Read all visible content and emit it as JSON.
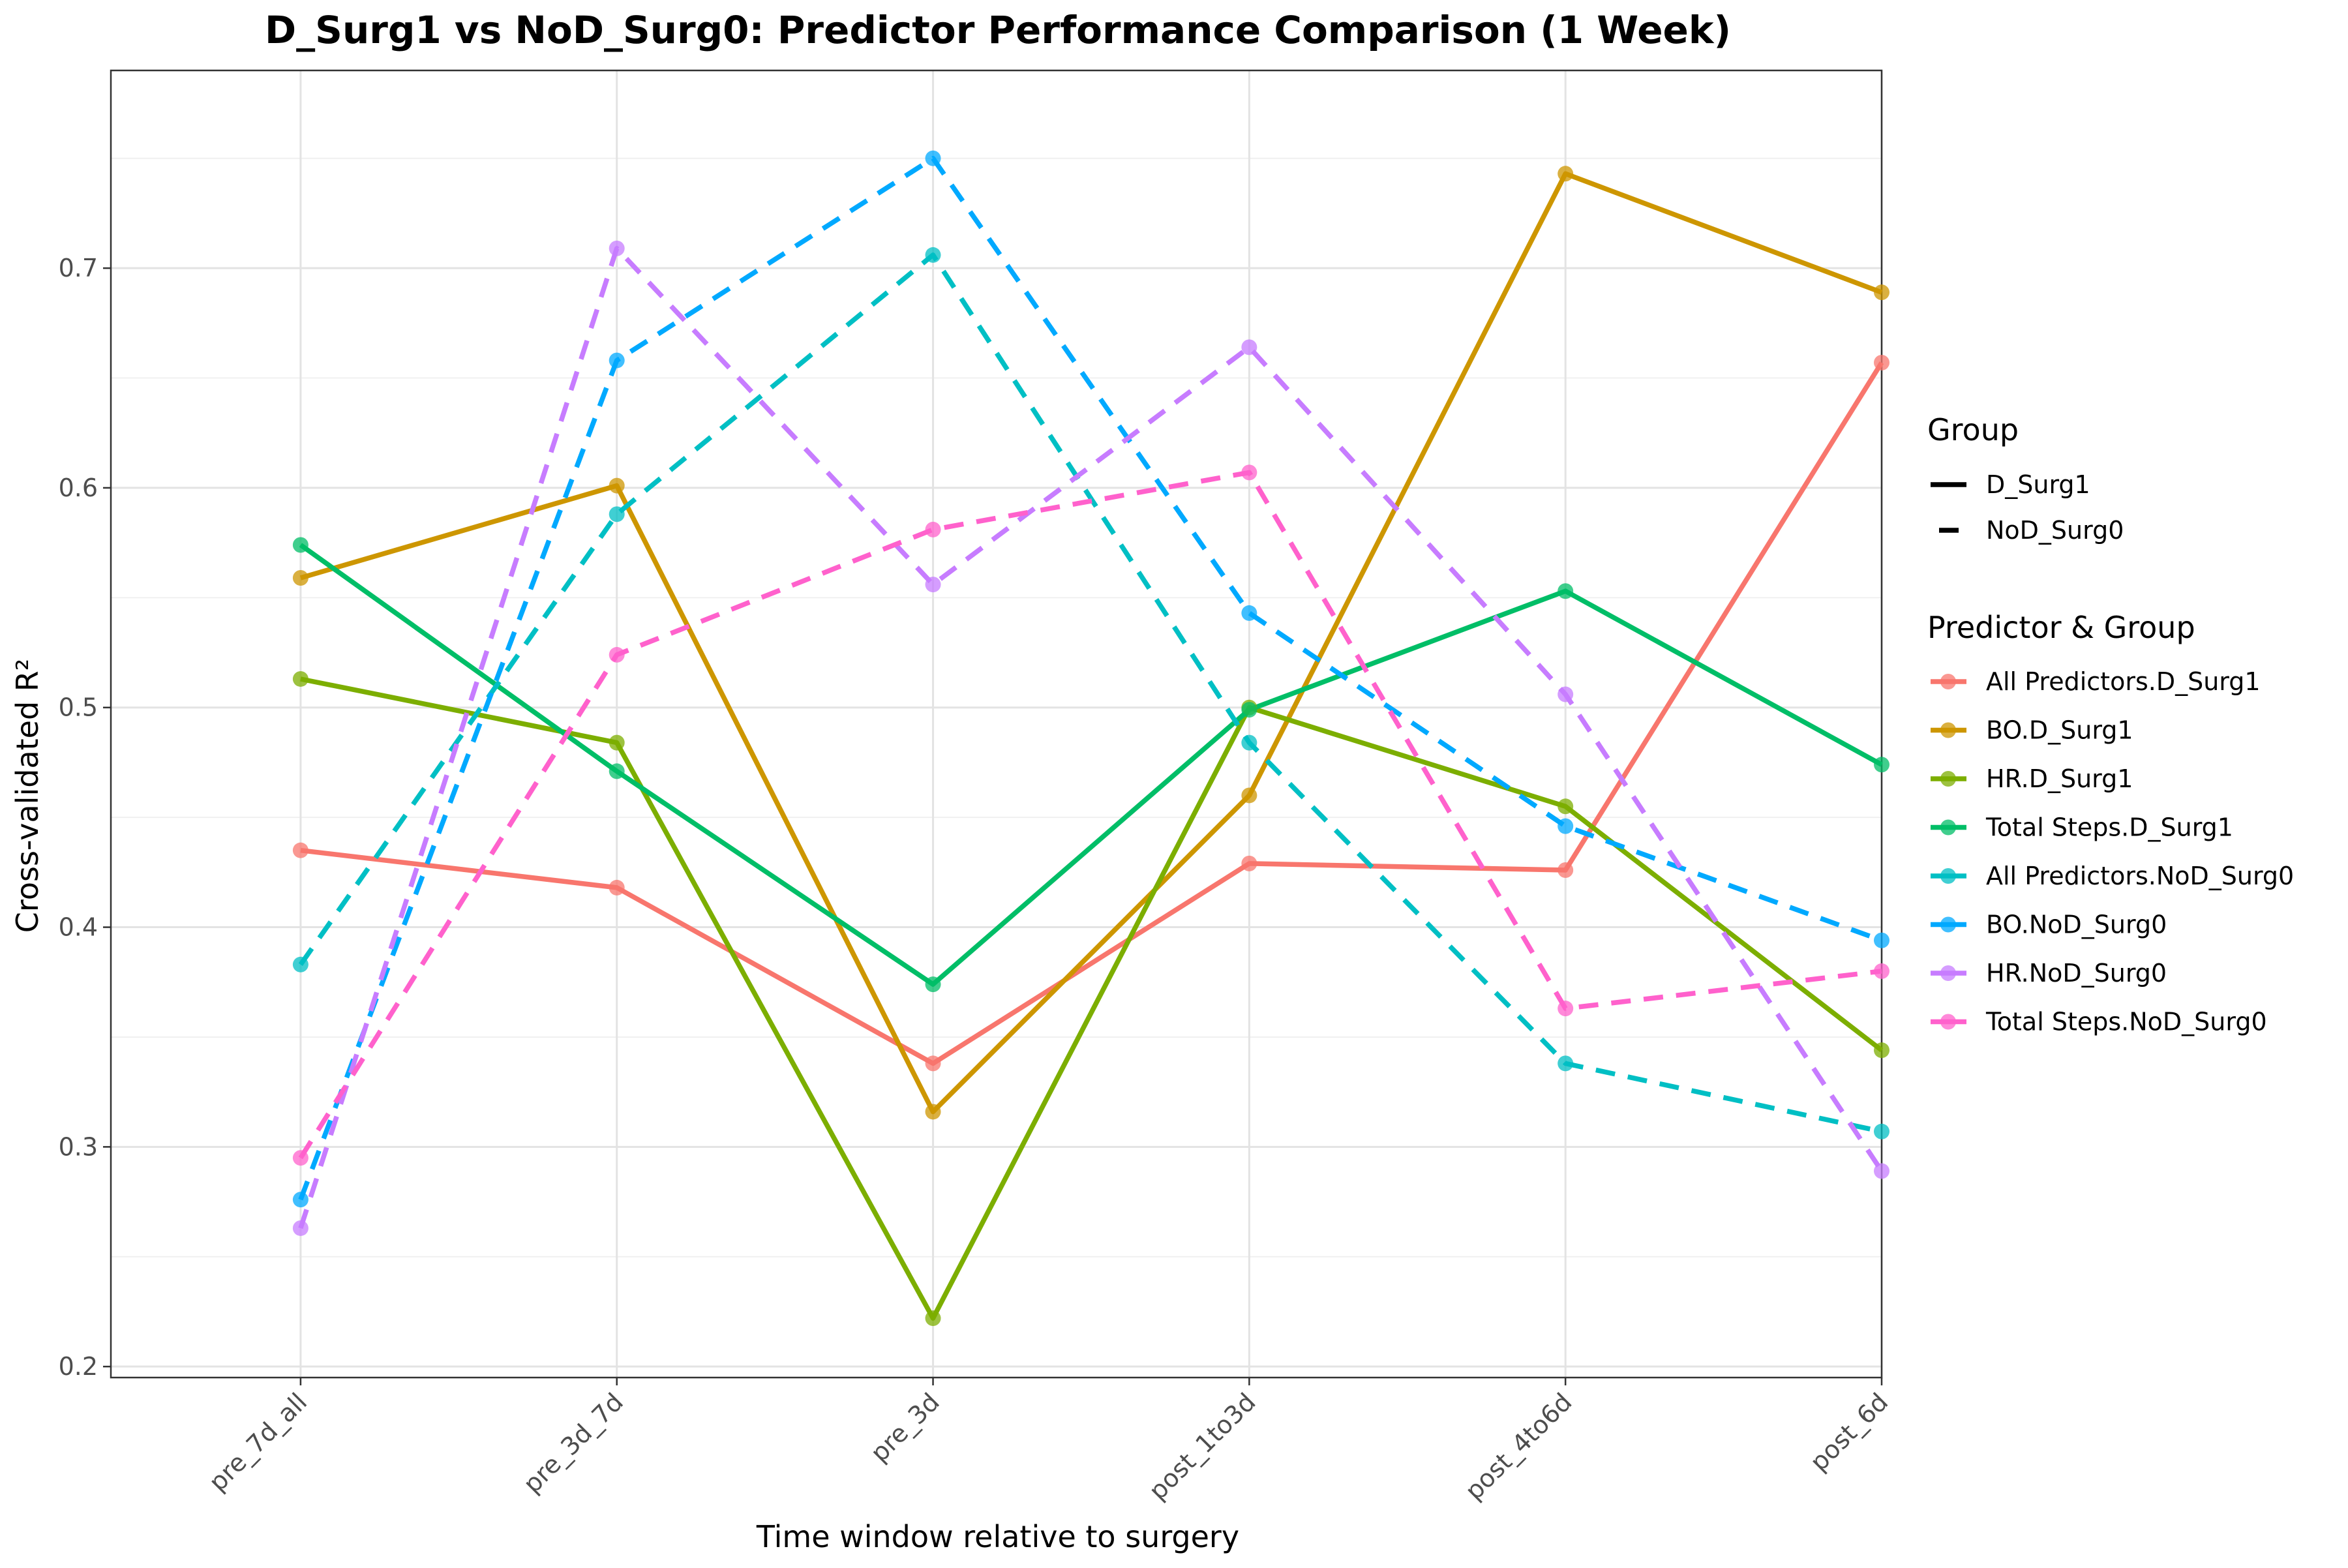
{
  "chart_data": {
    "type": "line",
    "title": "D_Surg1 vs NoD_Surg0: Predictor Performance Comparison (1 Week)",
    "xlabel": "Time window relative to surgery",
    "ylabel": "Cross-validated R²",
    "categories": [
      "pre_7d_all",
      "pre_3d_7d",
      "pre_3d",
      "post_1to3d",
      "post_4to6d",
      "post_6d"
    ],
    "ylim": [
      0.195,
      0.79
    ],
    "yticks": [
      0.2,
      0.3,
      0.4,
      0.5,
      0.6,
      0.7
    ],
    "grid": true,
    "legend_position": "right",
    "legend_group_title": "Group",
    "legend_color_title": "Predictor & Group",
    "groups": [
      {
        "name": "D_Surg1",
        "linetype": "solid"
      },
      {
        "name": "NoD_Surg0",
        "linetype": "dashed"
      }
    ],
    "series": [
      {
        "name": "All Predictors.D_Surg1",
        "color": "#F8766D",
        "linetype": "solid",
        "values": [
          0.435,
          0.418,
          0.338,
          0.429,
          0.426,
          0.657
        ]
      },
      {
        "name": "BO.D_Surg1",
        "color": "#CD9600",
        "linetype": "solid",
        "values": [
          0.559,
          0.601,
          0.316,
          0.46,
          0.743,
          0.689
        ]
      },
      {
        "name": "HR.D_Surg1",
        "color": "#7CAE00",
        "linetype": "solid",
        "values": [
          0.513,
          0.484,
          0.222,
          0.5,
          0.455,
          0.344
        ]
      },
      {
        "name": "Total Steps.D_Surg1",
        "color": "#00BE67",
        "linetype": "solid",
        "values": [
          0.574,
          0.471,
          0.374,
          0.499,
          0.553,
          0.474
        ]
      },
      {
        "name": "All Predictors.NoD_Surg0",
        "color": "#00BFC4",
        "linetype": "dashed",
        "values": [
          0.383,
          0.588,
          0.706,
          0.484,
          0.338,
          0.307
        ]
      },
      {
        "name": "BO.NoD_Surg0",
        "color": "#00A9FF",
        "linetype": "dashed",
        "values": [
          0.276,
          0.658,
          0.75,
          0.543,
          0.446,
          0.394
        ]
      },
      {
        "name": "HR.NoD_Surg0",
        "color": "#C77CFF",
        "linetype": "dashed",
        "values": [
          0.263,
          0.709,
          0.556,
          0.664,
          0.506,
          0.289
        ]
      },
      {
        "name": "Total Steps.NoD_Surg0",
        "color": "#FF61CC",
        "linetype": "dashed",
        "values": [
          0.295,
          0.524,
          0.581,
          0.607,
          0.363,
          0.38
        ]
      }
    ]
  }
}
